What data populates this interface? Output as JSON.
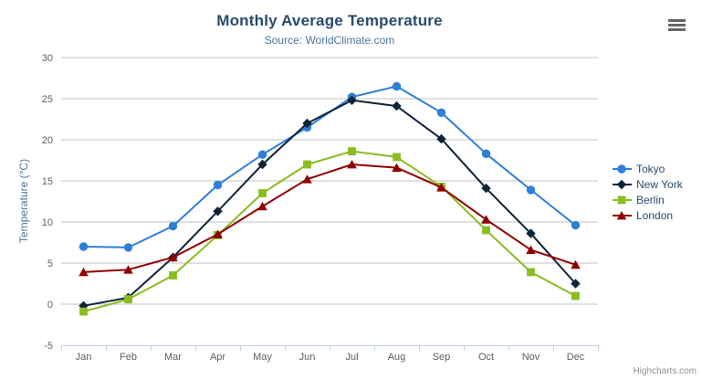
{
  "chart_data": {
    "type": "line",
    "title": "Monthly Average Temperature",
    "subtitle": "Source: WorldClimate.com",
    "xlabel": "",
    "ylabel": "Temperature (°C)",
    "categories": [
      "Jan",
      "Feb",
      "Mar",
      "Apr",
      "May",
      "Jun",
      "Jul",
      "Aug",
      "Sep",
      "Oct",
      "Nov",
      "Dec"
    ],
    "ylim": [
      -5,
      30
    ],
    "ytick_step": 5,
    "grid": true,
    "legend_position": "right",
    "series": [
      {
        "name": "Tokyo",
        "color": "#2f7ed8",
        "marker": "circle",
        "values": [
          7.0,
          6.9,
          9.5,
          14.5,
          18.2,
          21.5,
          25.2,
          26.5,
          23.3,
          18.3,
          13.9,
          9.6
        ]
      },
      {
        "name": "New York",
        "color": "#0d233a",
        "marker": "diamond",
        "values": [
          -0.2,
          0.8,
          5.7,
          11.3,
          17.0,
          22.0,
          24.8,
          24.1,
          20.1,
          14.1,
          8.6,
          2.5
        ]
      },
      {
        "name": "Berlin",
        "color": "#8bbc21",
        "marker": "square",
        "values": [
          -0.9,
          0.6,
          3.5,
          8.4,
          13.5,
          17.0,
          18.6,
          17.9,
          14.3,
          9.0,
          3.9,
          1.0
        ]
      },
      {
        "name": "London",
        "color": "#910000",
        "marker": "triangle",
        "values": [
          3.9,
          4.2,
          5.7,
          8.5,
          11.9,
          15.2,
          17.0,
          16.6,
          14.2,
          10.3,
          6.6,
          4.8
        ]
      }
    ]
  },
  "colors": {
    "title": "#274b6d",
    "subtitle": "#4d759e",
    "axis_title": "#4d759e",
    "tick_label": "#606060",
    "grid_line": "#c0c0c0",
    "axis_line": "#c0d0e0",
    "legend_text": "#274b6d",
    "credits": "#909090",
    "menu_icon": "#666666",
    "background": "#ffffff"
  },
  "credits": "Highcharts.com",
  "icons": {
    "export": "hamburger-icon"
  }
}
